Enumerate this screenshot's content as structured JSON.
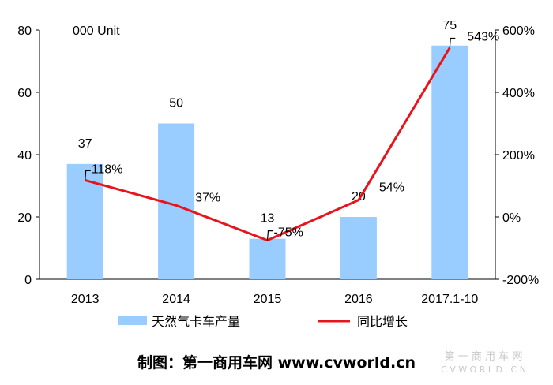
{
  "chart_data": {
    "type": "bar",
    "unit_label": "000 Unit",
    "categories": [
      "2013",
      "2014",
      "2015",
      "2016",
      "2017.1-10"
    ],
    "series": [
      {
        "name": "天然气卡车产量",
        "kind": "bar",
        "axis": "left",
        "color": "#99ccff",
        "values": [
          37,
          50,
          13,
          20,
          75
        ],
        "labels": [
          "37",
          "50",
          "13",
          "20",
          "75"
        ]
      },
      {
        "name": "同比增长",
        "kind": "line",
        "axis": "right",
        "color": "#e8141b",
        "values": [
          118,
          37,
          -75,
          54,
          543
        ],
        "labels": [
          "118%",
          "37%",
          "-75%",
          "54%",
          "543%"
        ]
      }
    ],
    "left_axis": {
      "min": 0,
      "max": 80,
      "ticks": [
        "0",
        "20",
        "40",
        "60",
        "80"
      ]
    },
    "right_axis": {
      "min": -200,
      "max": 600,
      "ticks": [
        "-200%",
        "0%",
        "200%",
        "400%",
        "600%"
      ]
    },
    "legend_position": "bottom"
  },
  "credit": "制图：第一商用车网 www.cvworld.cn",
  "watermark": {
    "line1": "第 一 商 用 车 网",
    "line2": "C V W O R L D . C N"
  }
}
